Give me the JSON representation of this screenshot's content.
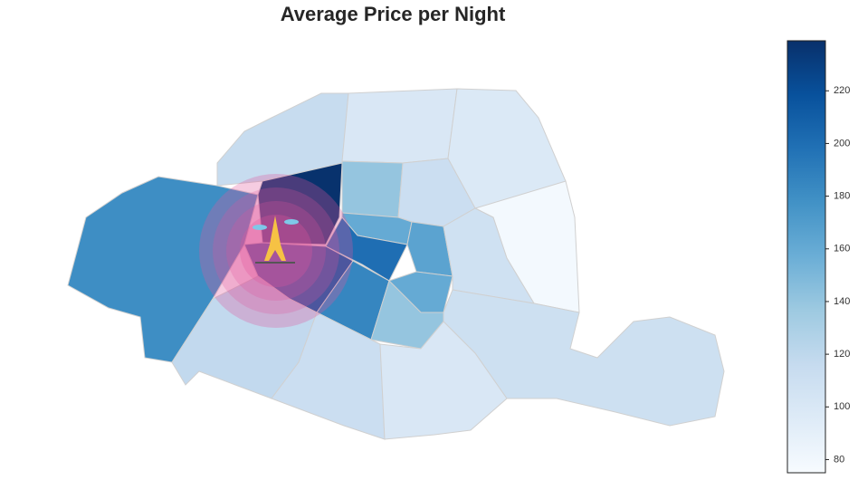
{
  "chart_data": {
    "type": "choropleth",
    "title": "Average Price per Night",
    "colormap": "Blues",
    "values": [
      180,
      115,
      100,
      98,
      78,
      238,
      140,
      112,
      160,
      165,
      200,
      215,
      185,
      160,
      108,
      110,
      140,
      118,
      112,
      100
    ],
    "clim": [
      75,
      239
    ],
    "cticks": [
      80,
      100,
      120,
      140,
      160,
      180,
      200,
      220
    ]
  }
}
